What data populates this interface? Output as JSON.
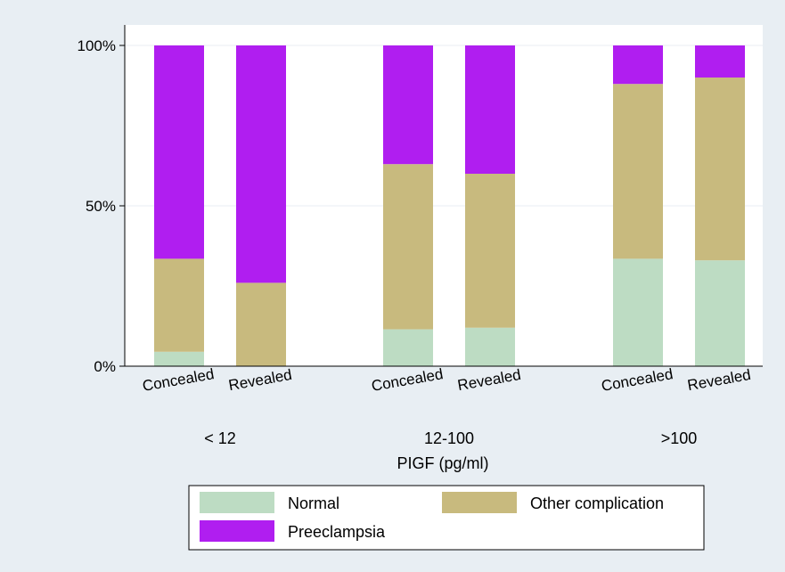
{
  "chart_data": {
    "type": "bar",
    "stacked": true,
    "xlabel": "PIGF (pg/ml)",
    "ylabel": "",
    "ylim": [
      0,
      100
    ],
    "yticks": [
      "0%",
      "50%",
      "100%"
    ],
    "groups": [
      "< 12",
      "12-100",
      ">100"
    ],
    "categories": [
      "Concealed",
      "Revealed",
      "Concealed",
      "Revealed",
      "Concealed",
      "Revealed"
    ],
    "series": [
      {
        "name": "Normal",
        "color": "#bddcc3",
        "values": [
          4.5,
          0,
          11.5,
          12,
          33.5,
          33
        ]
      },
      {
        "name": "Other complication",
        "color": "#c8ba7e",
        "values": [
          29,
          26,
          51.5,
          48,
          54.5,
          57
        ]
      },
      {
        "name": "Preeclampsia",
        "color": "#b01ef0",
        "values": [
          66.5,
          74,
          37,
          40,
          12,
          10
        ]
      }
    ],
    "grid": true,
    "legend_position": "bottom"
  }
}
